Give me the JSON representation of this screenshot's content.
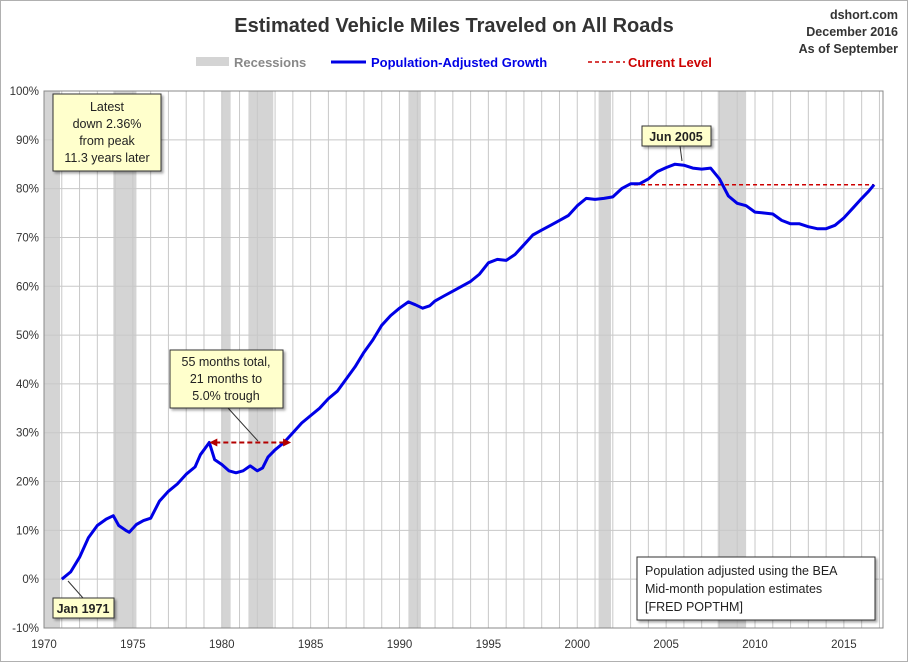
{
  "chart_data": {
    "type": "line",
    "title": "Estimated Vehicle Miles Traveled on All Roads",
    "source": "dshort.com",
    "date_line_1": "December 2016",
    "date_line_2": "As of September",
    "xlabel": "",
    "ylabel": "",
    "xlim": [
      1970,
      2017.2
    ],
    "ylim": [
      -10,
      100
    ],
    "x_ticks": [
      1970,
      1975,
      1980,
      1985,
      1990,
      1995,
      2000,
      2005,
      2010,
      2015
    ],
    "x_tick_labels": [
      "1970",
      "1975",
      "1980",
      "1985",
      "1990",
      "1995",
      "2000",
      "2005",
      "2010",
      "2015"
    ],
    "y_ticks": [
      -10,
      0,
      10,
      20,
      30,
      40,
      50,
      60,
      70,
      80,
      90,
      100
    ],
    "y_tick_labels": [
      "-10%",
      "0%",
      "10%",
      "20%",
      "30%",
      "40%",
      "50%",
      "60%",
      "70%",
      "80%",
      "90%",
      "100%"
    ],
    "grid": true,
    "legend_position": "top",
    "legend": {
      "recessions": "Recessions",
      "series": "Population-Adjusted Growth",
      "current": "Current Level"
    },
    "colors": {
      "series": "#0000e6",
      "current_level": "#cc0000",
      "recession": "#d4d4d4",
      "annotation_bg": "#ffffcc"
    },
    "recessions": [
      [
        1970.0,
        1970.9
      ],
      [
        1973.9,
        1975.2
      ],
      [
        1980.0,
        1980.5
      ],
      [
        1981.5,
        1982.9
      ],
      [
        1990.5,
        1991.2
      ],
      [
        2001.2,
        2001.9
      ],
      [
        2007.9,
        2009.5
      ]
    ],
    "series": [
      {
        "name": "Population-Adjusted Growth",
        "points": [
          [
            1971.0,
            0
          ],
          [
            1971.5,
            1.5
          ],
          [
            1972.0,
            4.5
          ],
          [
            1972.5,
            8.5
          ],
          [
            1973.0,
            11
          ],
          [
            1973.5,
            12.3
          ],
          [
            1973.9,
            13
          ],
          [
            1974.2,
            11
          ],
          [
            1974.6,
            10
          ],
          [
            1974.8,
            9.6
          ],
          [
            1975.2,
            11.2
          ],
          [
            1975.6,
            12
          ],
          [
            1976.0,
            12.5
          ],
          [
            1976.5,
            16
          ],
          [
            1977.0,
            18
          ],
          [
            1977.5,
            19.5
          ],
          [
            1978.0,
            21.5
          ],
          [
            1978.5,
            23
          ],
          [
            1978.8,
            25.5
          ],
          [
            1979.0,
            26.5
          ],
          [
            1979.3,
            28
          ],
          [
            1979.6,
            24.5
          ],
          [
            1980.0,
            23.5
          ],
          [
            1980.4,
            22.2
          ],
          [
            1980.8,
            21.8
          ],
          [
            1981.2,
            22.2
          ],
          [
            1981.6,
            23.2
          ],
          [
            1982.0,
            22.2
          ],
          [
            1982.3,
            22.8
          ],
          [
            1982.6,
            25
          ],
          [
            1983.0,
            26.5
          ],
          [
            1983.5,
            28
          ],
          [
            1984.0,
            30
          ],
          [
            1984.5,
            32
          ],
          [
            1985.0,
            33.5
          ],
          [
            1985.5,
            35
          ],
          [
            1986.0,
            37
          ],
          [
            1986.5,
            38.5
          ],
          [
            1987.0,
            41
          ],
          [
            1987.5,
            43.5
          ],
          [
            1988.0,
            46.5
          ],
          [
            1988.5,
            49
          ],
          [
            1989.0,
            52
          ],
          [
            1989.5,
            54
          ],
          [
            1990.0,
            55.5
          ],
          [
            1990.5,
            56.8
          ],
          [
            1990.9,
            56.2
          ],
          [
            1991.3,
            55.5
          ],
          [
            1991.7,
            56
          ],
          [
            1992.0,
            57
          ],
          [
            1992.5,
            58
          ],
          [
            1993.0,
            59
          ],
          [
            1993.5,
            60
          ],
          [
            1994.0,
            61
          ],
          [
            1994.5,
            62.5
          ],
          [
            1995.0,
            64.8
          ],
          [
            1995.5,
            65.5
          ],
          [
            1996.0,
            65.3
          ],
          [
            1996.5,
            66.5
          ],
          [
            1997.0,
            68.5
          ],
          [
            1997.5,
            70.5
          ],
          [
            1998.0,
            71.5
          ],
          [
            1998.5,
            72.5
          ],
          [
            1999.0,
            73.5
          ],
          [
            1999.5,
            74.5
          ],
          [
            2000.0,
            76.5
          ],
          [
            2000.5,
            78
          ],
          [
            2001.0,
            77.8
          ],
          [
            2001.5,
            78
          ],
          [
            2002.0,
            78.3
          ],
          [
            2002.5,
            80
          ],
          [
            2003.0,
            81
          ],
          [
            2003.5,
            81
          ],
          [
            2004.0,
            82
          ],
          [
            2004.5,
            83.5
          ],
          [
            2005.0,
            84.3
          ],
          [
            2005.5,
            85
          ],
          [
            2006.0,
            84.8
          ],
          [
            2006.5,
            84.2
          ],
          [
            2007.0,
            84
          ],
          [
            2007.5,
            84.2
          ],
          [
            2008.0,
            82
          ],
          [
            2008.5,
            78.5
          ],
          [
            2009.0,
            77
          ],
          [
            2009.5,
            76.5
          ],
          [
            2010.0,
            75.2
          ],
          [
            2010.5,
            75
          ],
          [
            2011.0,
            74.8
          ],
          [
            2011.5,
            73.5
          ],
          [
            2012.0,
            72.8
          ],
          [
            2012.5,
            72.8
          ],
          [
            2013.0,
            72.2
          ],
          [
            2013.5,
            71.8
          ],
          [
            2014.0,
            71.8
          ],
          [
            2014.5,
            72.5
          ],
          [
            2015.0,
            74
          ],
          [
            2015.5,
            76
          ],
          [
            2016.0,
            78
          ],
          [
            2016.4,
            79.5
          ],
          [
            2016.7,
            80.8
          ]
        ]
      }
    ],
    "current_level": {
      "value": 80.8,
      "x_start": 2002.8,
      "x_end": 2016.7
    },
    "trough_arrow": {
      "x_start": 1979.3,
      "x_end": 1983.9,
      "y": 28
    },
    "annotations": {
      "latest": [
        "Latest",
        "down 2.36%",
        "from peak",
        "11.3 years later"
      ],
      "trough": [
        "55 months total,",
        "21 months to",
        "5.0% trough"
      ],
      "peak": "Jun 2005",
      "start": "Jan 1971",
      "note": [
        "Population adjusted using the BEA",
        "Mid-month population estimates",
        "[FRED POPTHM]"
      ]
    }
  }
}
